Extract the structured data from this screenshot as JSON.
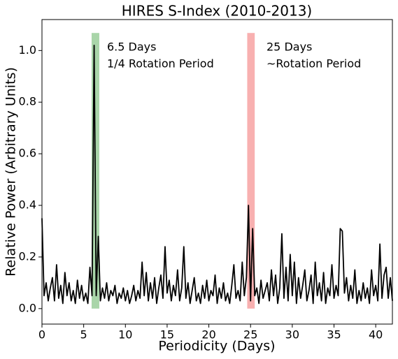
{
  "chart_data": {
    "type": "line",
    "title": "HIRES S-Index (2010-2013)",
    "xlabel": "Periodicity (Days)",
    "ylabel": "Relative Power (Arbitrary Units)",
    "annotations": [
      "6.5 Days",
      "1/4 Rotation Period",
      "25 Days",
      "~Rotation Period"
    ],
    "highlights": [
      {
        "xrange": [
          5.95,
          6.87
        ],
        "ytop": 1.068,
        "color": "#a9d5a9"
      },
      {
        "xrange": [
          24.6,
          25.5
        ],
        "ytop": 1.068,
        "color": "#f8b0b0"
      }
    ],
    "xlim": [
      0,
      42
    ],
    "ylim": [
      -0.06,
      1.12
    ],
    "xticks": [
      0,
      5,
      10,
      15,
      20,
      25,
      30,
      35,
      40
    ],
    "yticks": [
      {
        "value": 0,
        "label": "0.0"
      },
      0.2,
      0.4,
      0.6,
      0.8,
      {
        "value": 1,
        "label": "1.0"
      }
    ],
    "series": [
      {
        "color": "#000000",
        "x": [
          0,
          0.25,
          0.5,
          0.75,
          1,
          1.25,
          1.5,
          1.75,
          2,
          2.25,
          2.5,
          2.75,
          3,
          3.25,
          3.5,
          3.75,
          4,
          4.25,
          4.5,
          4.75,
          5,
          5.25,
          5.5,
          5.75,
          6,
          6.25,
          6.5,
          6.75,
          7,
          7.25,
          7.5,
          7.75,
          8,
          8.25,
          8.5,
          8.75,
          9,
          9.25,
          9.5,
          9.75,
          10,
          10.25,
          10.5,
          10.75,
          11,
          11.25,
          11.5,
          11.75,
          12,
          12.25,
          12.5,
          12.75,
          13,
          13.25,
          13.5,
          13.75,
          14,
          14.25,
          14.5,
          14.75,
          15,
          15.25,
          15.5,
          15.75,
          16,
          16.25,
          16.5,
          16.75,
          17,
          17.25,
          17.5,
          17.75,
          18,
          18.25,
          18.5,
          18.75,
          19,
          19.25,
          19.5,
          19.75,
          20,
          20.25,
          20.5,
          20.75,
          21,
          21.25,
          21.5,
          21.75,
          22,
          22.25,
          22.5,
          22.75,
          23,
          23.25,
          23.5,
          23.75,
          24,
          24.25,
          24.5,
          24.75,
          25,
          25.25,
          25.5,
          25.75,
          26,
          26.25,
          26.5,
          26.75,
          27,
          27.25,
          27.5,
          27.75,
          28,
          28.25,
          28.5,
          28.75,
          29,
          29.25,
          29.5,
          29.75,
          30,
          30.25,
          30.5,
          30.75,
          31,
          31.25,
          31.5,
          31.75,
          32,
          32.25,
          32.5,
          32.75,
          33,
          33.25,
          33.5,
          33.75,
          34,
          34.25,
          34.5,
          34.75,
          35,
          35.25,
          35.5,
          35.75,
          36,
          36.25,
          36.5,
          36.75,
          37,
          37.25,
          37.5,
          37.75,
          38,
          38.25,
          38.5,
          38.75,
          39,
          39.25,
          39.5,
          39.75,
          40,
          40.25,
          40.5,
          40.75,
          41,
          41.25,
          41.5,
          41.75,
          42
        ],
        "values": [
          0.35,
          0.05,
          0.1,
          0.03,
          0.08,
          0.12,
          0.03,
          0.17,
          0.04,
          0.09,
          0.02,
          0.14,
          0.05,
          0.1,
          0.03,
          0.07,
          0.02,
          0.11,
          0.04,
          0.09,
          0.03,
          0.06,
          0.02,
          0.16,
          0.05,
          1.02,
          0.05,
          0.28,
          0.03,
          0.08,
          0.04,
          0.1,
          0.03,
          0.07,
          0.05,
          0.09,
          0.02,
          0.06,
          0.04,
          0.08,
          0.03,
          0.07,
          0.02,
          0.05,
          0.09,
          0.03,
          0.07,
          0.04,
          0.18,
          0.05,
          0.14,
          0.03,
          0.1,
          0.04,
          0.12,
          0.02,
          0.08,
          0.13,
          0.04,
          0.24,
          0.06,
          0.11,
          0.03,
          0.09,
          0.05,
          0.15,
          0.03,
          0.08,
          0.24,
          0.04,
          0.1,
          0.02,
          0.07,
          0.12,
          0.03,
          0.06,
          0.02,
          0.09,
          0.04,
          0.11,
          0.03,
          0.07,
          0.05,
          0.13,
          0.02,
          0.08,
          0.04,
          0.1,
          0.03,
          0.06,
          0.02,
          0.09,
          0.17,
          0.04,
          0.07,
          0.03,
          0.18,
          0.05,
          0.12,
          0.4,
          0.03,
          0.31,
          0.05,
          0.08,
          0.02,
          0.11,
          0.04,
          0.07,
          0.1,
          0.03,
          0.15,
          0.05,
          0.13,
          0.02,
          0.08,
          0.29,
          0.04,
          0.16,
          0.03,
          0.21,
          0.05,
          0.18,
          0.02,
          0.12,
          0.04,
          0.09,
          0.15,
          0.03,
          0.07,
          0.13,
          0.02,
          0.18,
          0.05,
          0.1,
          0.03,
          0.14,
          0.02,
          0.08,
          0.05,
          0.17,
          0.04,
          0.09,
          0.05,
          0.31,
          0.3,
          0.06,
          0.12,
          0.03,
          0.09,
          0.04,
          0.15,
          0.02,
          0.07,
          0.03,
          0.1,
          0.04,
          0.08,
          0.02,
          0.15,
          0.05,
          0.09,
          0.03,
          0.25,
          0.04,
          0.13,
          0.16,
          0.04,
          0.12,
          0.03
        ]
      }
    ]
  }
}
